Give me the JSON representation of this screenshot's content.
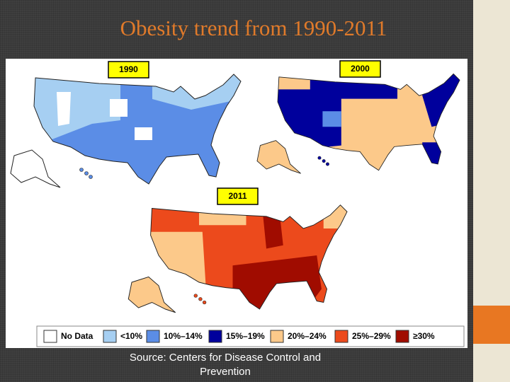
{
  "title": "Obesity trend from 1990-2011",
  "maps": [
    {
      "year": "1990"
    },
    {
      "year": "2000"
    },
    {
      "year": "2011"
    }
  ],
  "legend": {
    "items": [
      {
        "label": "No Data",
        "color": "#ffffff"
      },
      {
        "label": "<10%",
        "color": "#a6cff2"
      },
      {
        "label": "10%–14%",
        "color": "#5b8de6"
      },
      {
        "label": "15%–19%",
        "color": "#00009c"
      },
      {
        "label": "20%–24%",
        "color": "#fcc98a"
      },
      {
        "label": "25%–29%",
        "color": "#ec4a1c"
      },
      {
        "label": "≥30%",
        "color": "#a00c00"
      }
    ]
  },
  "source": "Source: Centers for Disease Control and Prevention"
}
